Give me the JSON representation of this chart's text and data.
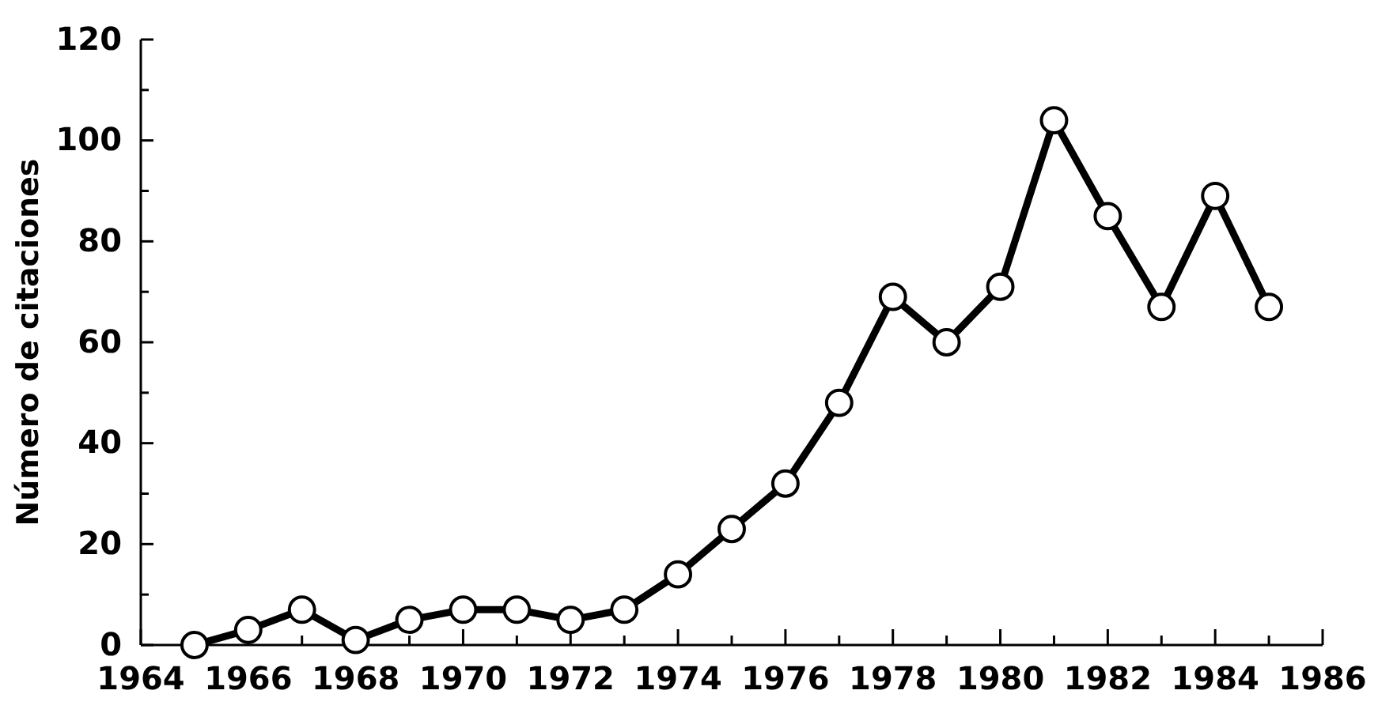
{
  "chart_data": {
    "type": "line",
    "ylabel": "Número de citaciones",
    "x": [
      1965,
      1966,
      1967,
      1968,
      1969,
      1970,
      1971,
      1972,
      1973,
      1974,
      1975,
      1976,
      1977,
      1978,
      1979,
      1980,
      1981,
      1982,
      1983,
      1984,
      1985
    ],
    "series": [
      {
        "color": "#000000",
        "values": [
          0,
          3,
          7,
          1,
          5,
          7,
          7,
          5,
          7,
          14,
          23,
          32,
          48,
          69,
          60,
          71,
          104,
          85,
          67,
          89,
          67
        ]
      }
    ],
    "xlim": [
      1964,
      1986
    ],
    "xticks": [
      1964,
      {
        "value": 1965,
        "label": null
      },
      1966,
      {
        "value": 1967,
        "label": null
      },
      1968,
      {
        "value": 1969,
        "label": null
      },
      1970,
      {
        "value": 1971,
        "label": null
      },
      1972,
      {
        "value": 1973,
        "label": null
      },
      1974,
      {
        "value": 1975,
        "label": null
      },
      1976,
      {
        "value": 1977,
        "label": null
      },
      1978,
      {
        "value": 1979,
        "label": null
      },
      1980,
      {
        "value": 1981,
        "label": null
      },
      1982,
      {
        "value": 1983,
        "label": null
      },
      1984,
      {
        "value": 1985,
        "label": null
      },
      1986
    ],
    "ylim": [
      0,
      120
    ],
    "yticks": [
      0,
      {
        "value": 10,
        "label": null
      },
      20,
      {
        "value": 30,
        "label": null
      },
      40,
      {
        "value": 50,
        "label": null
      },
      60,
      {
        "value": 70,
        "label": null
      },
      80,
      {
        "value": 90,
        "label": null
      },
      100,
      {
        "value": 110,
        "label": null
      },
      120
    ],
    "marker": "circle",
    "line_style": "solid",
    "grid": false
  }
}
